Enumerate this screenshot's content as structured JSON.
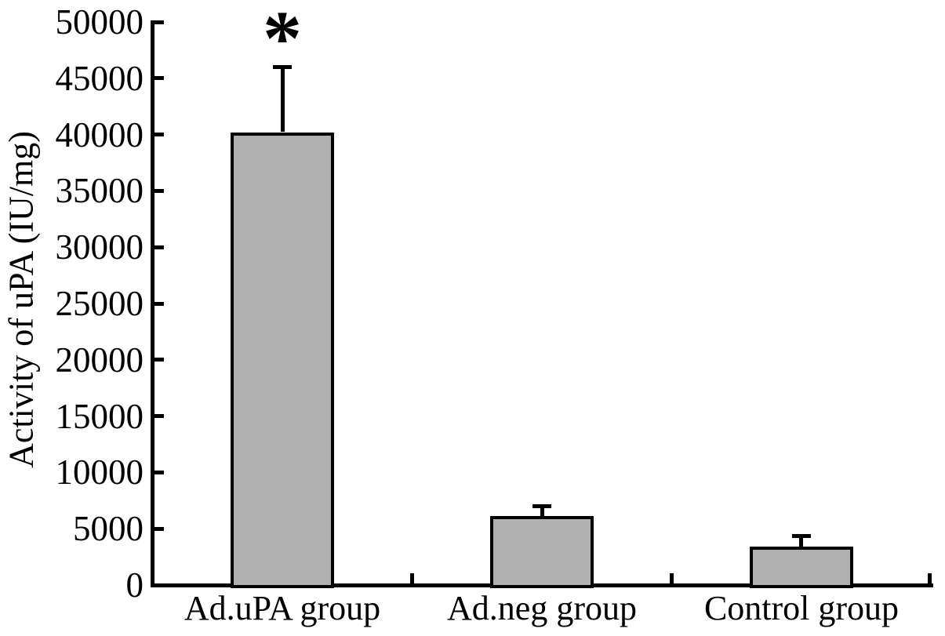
{
  "chart_data": {
    "type": "bar",
    "title": "",
    "xlabel": "",
    "ylabel": "Activity of uPA (IU/mg)",
    "categories": [
      "Ad.uPA group",
      "Ad.neg group",
      "Control group"
    ],
    "values": [
      40200,
      6100,
      3400
    ],
    "error_upper": [
      5800,
      900,
      1000
    ],
    "ylim": [
      0,
      50000
    ],
    "yticks": [
      0,
      5000,
      10000,
      15000,
      20000,
      25000,
      30000,
      35000,
      40000,
      45000,
      50000
    ],
    "grid": false,
    "legend": false,
    "tick_direction": "in",
    "annotations": [
      {
        "text": "*",
        "category_index": 0,
        "meaning": "statistical-significance-marker"
      }
    ],
    "bar_fill_color": "#b0b0b0",
    "bar_border_color": "#000000",
    "axis_color": "#000000",
    "background_color": "#ffffff"
  }
}
